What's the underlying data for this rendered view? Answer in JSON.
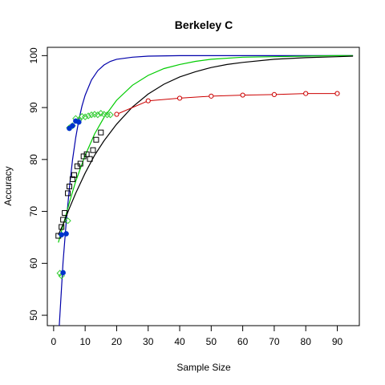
{
  "chart_data": {
    "type": "scatter",
    "title": "Berkeley C",
    "xlabel": "Sample Size",
    "ylabel": "Accuracy",
    "xlim": [
      -2,
      97
    ],
    "ylim": [
      48,
      101.6
    ],
    "xticks": [
      0,
      10,
      20,
      30,
      40,
      50,
      60,
      70,
      80,
      90
    ],
    "yticks": [
      50,
      60,
      70,
      80,
      90,
      100
    ],
    "grid": false,
    "colors": {
      "red": "#cc0000",
      "black": "#000000",
      "green": "#00cc00",
      "green_marker": "#33cc33",
      "blue_line": "#0000aa",
      "blue_marker": "#0033cc"
    },
    "series": [
      {
        "marker": "circle-open",
        "color": "#cc0000",
        "connected": true,
        "x": [
          20,
          30,
          40,
          50,
          60,
          70,
          80,
          90
        ],
        "y": [
          88.7,
          91.3,
          91.8,
          92.2,
          92.4,
          92.5,
          92.7,
          92.7
        ]
      },
      {
        "marker": "square-open",
        "color": "#000000",
        "connected": false,
        "x": [
          1.5,
          2.5,
          3,
          3.5,
          4.5,
          5,
          6,
          6.5,
          7.5,
          8.5,
          9.5,
          10.5,
          11.5,
          12.5,
          13.5,
          15
        ],
        "y": [
          65.3,
          67,
          68.4,
          69.7,
          73.5,
          74.8,
          76.2,
          77,
          78.7,
          79.2,
          80.6,
          81,
          80.1,
          81.8,
          83.8,
          85.2
        ]
      },
      {
        "marker": "diamond-open",
        "color": "#33cc33",
        "connected": false,
        "x": [
          2,
          2.5,
          4.5,
          5,
          6,
          7,
          8,
          9,
          10,
          11,
          12,
          13,
          14,
          15,
          16,
          17,
          18
        ],
        "y": [
          58.1,
          57.6,
          68.2,
          86.1,
          86.5,
          87.9,
          87.6,
          88.3,
          88.2,
          88.4,
          88.6,
          88.7,
          88.6,
          88.9,
          88.7,
          88.6,
          88.6
        ]
      },
      {
        "marker": "circle-filled",
        "color": "#0033cc",
        "connected": false,
        "x": [
          2.5,
          3,
          4,
          5,
          6,
          7,
          8
        ],
        "y": [
          65.5,
          58.2,
          65.7,
          86,
          86.5,
          87.4,
          87.2
        ]
      }
    ],
    "fits": [
      {
        "color": "#0000aa",
        "x": [
          1.8,
          3,
          4,
          5,
          6,
          7,
          8,
          9,
          10,
          12,
          14,
          16,
          18,
          20,
          25,
          30,
          40,
          50,
          60,
          70,
          80,
          90,
          95
        ],
        "y": [
          48,
          60.2,
          68,
          74.5,
          79.9,
          84.2,
          87.6,
          90.3,
          92.4,
          95.3,
          97.1,
          98.2,
          98.9,
          99.3,
          99.7,
          99.9,
          100,
          100,
          100,
          100,
          100,
          100,
          100
        ]
      },
      {
        "color": "#00cc00",
        "x": [
          1.5,
          3,
          5,
          7,
          10,
          13,
          16,
          20,
          25,
          30,
          35,
          40,
          45,
          50,
          60,
          70,
          80,
          90,
          95
        ],
        "y": [
          64,
          67.3,
          71.7,
          75.8,
          80.8,
          84.9,
          88.1,
          91.4,
          94.3,
          96.2,
          97.5,
          98.3,
          98.9,
          99.3,
          99.7,
          99.8,
          99.9,
          100,
          100
        ]
      },
      {
        "color": "#000000",
        "x": [
          1.5,
          3,
          5,
          7,
          10,
          13,
          16,
          20,
          25,
          30,
          35,
          40,
          45,
          50,
          55,
          60,
          70,
          80,
          90,
          95
        ],
        "y": [
          65.5,
          67.5,
          70.6,
          73.5,
          77.4,
          80.8,
          83.6,
          86.8,
          90.1,
          92.6,
          94.5,
          95.9,
          96.9,
          97.7,
          98.3,
          98.7,
          99.3,
          99.6,
          99.8,
          99.9
        ]
      }
    ]
  }
}
